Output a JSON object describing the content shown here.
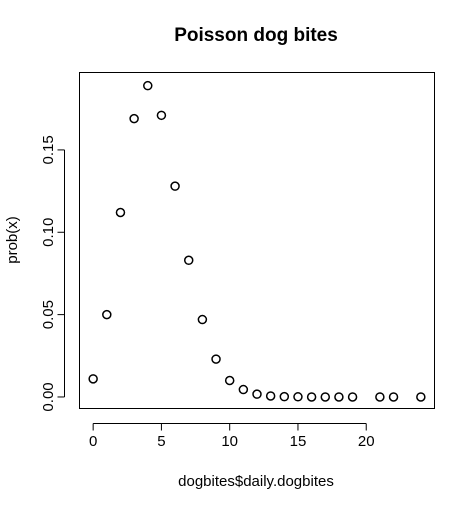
{
  "chart_data": {
    "type": "scatter",
    "title": "Poisson dog bites",
    "xlabel": "dogbites$daily.dogbites",
    "ylabel": "prob(x)",
    "xlim": [
      -1,
      25
    ],
    "ylim": [
      -0.007,
      0.197
    ],
    "x_ticks": [
      0,
      5,
      10,
      15,
      20
    ],
    "y_ticks": [
      0.0,
      0.05,
      0.1,
      0.15
    ],
    "x_tick_labels": [
      "0",
      "5",
      "10",
      "15",
      "20"
    ],
    "y_tick_labels": [
      "0.00",
      "0.05",
      "0.10",
      "0.15"
    ],
    "grid": false,
    "marker": "open-circle",
    "points": [
      {
        "x": 0,
        "y": 0.011
      },
      {
        "x": 1,
        "y": 0.05
      },
      {
        "x": 2,
        "y": 0.112
      },
      {
        "x": 3,
        "y": 0.169
      },
      {
        "x": 4,
        "y": 0.189
      },
      {
        "x": 5,
        "y": 0.171
      },
      {
        "x": 6,
        "y": 0.128
      },
      {
        "x": 7,
        "y": 0.083
      },
      {
        "x": 8,
        "y": 0.047
      },
      {
        "x": 9,
        "y": 0.023
      },
      {
        "x": 10,
        "y": 0.01
      },
      {
        "x": 11,
        "y": 0.0045
      },
      {
        "x": 12,
        "y": 0.0017
      },
      {
        "x": 13,
        "y": 0.0006
      },
      {
        "x": 14,
        "y": 0.0002
      },
      {
        "x": 15,
        "y": 0.0001
      },
      {
        "x": 16,
        "y": 0.0
      },
      {
        "x": 17,
        "y": 0.0
      },
      {
        "x": 18,
        "y": 0.0
      },
      {
        "x": 19,
        "y": 0.0
      },
      {
        "x": 21,
        "y": 0.0
      },
      {
        "x": 22,
        "y": 0.0
      },
      {
        "x": 24,
        "y": 0.0
      }
    ]
  }
}
